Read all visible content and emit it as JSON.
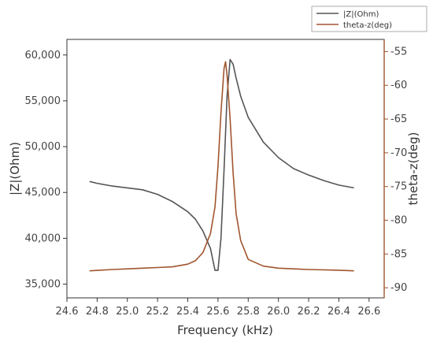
{
  "chart_data": {
    "type": "line",
    "xlabel": "Frequency (kHz)",
    "y1label": "|Z|(Ohm)",
    "y2label": "theta-z(deg)",
    "xlim": [
      24.6,
      26.7
    ],
    "y1lim": [
      33500,
      61700
    ],
    "y2lim": [
      -91.5,
      -53.2
    ],
    "x_ticks": [
      "24.6",
      "24.8",
      "25.0",
      "25.2",
      "25.4",
      "25.6",
      "25.8",
      "26.0",
      "26.2",
      "26.4",
      "26.6"
    ],
    "y1_ticks": [
      "35,000",
      "40,000",
      "45,000",
      "50,000",
      "55,000",
      "60,000"
    ],
    "y2_ticks": [
      "-55",
      "-60",
      "-65",
      "-70",
      "-75",
      "-80",
      "-85",
      "-90"
    ],
    "legend": {
      "placement": "top-right",
      "entries": [
        "|Z|(Ohm)",
        "theta-z(deg)"
      ]
    },
    "series": [
      {
        "name": "|Z|(Ohm)",
        "axis": "left",
        "color": "#555555",
        "x": [
          24.75,
          24.8,
          24.9,
          25.0,
          25.1,
          25.2,
          25.3,
          25.4,
          25.45,
          25.5,
          25.55,
          25.58,
          25.6,
          25.62,
          25.64,
          25.66,
          25.68,
          25.7,
          25.72,
          25.75,
          25.8,
          25.9,
          26.0,
          26.1,
          26.2,
          26.3,
          26.4,
          26.5
        ],
        "y": [
          46200,
          46000,
          45700,
          45500,
          45300,
          44800,
          44000,
          42900,
          42100,
          40800,
          38900,
          36500,
          36500,
          40000,
          47500,
          55500,
          59500,
          59000,
          57500,
          55500,
          53200,
          50500,
          48800,
          47600,
          46900,
          46300,
          45800,
          45500
        ]
      },
      {
        "name": "theta-z(deg)",
        "axis": "right",
        "color": "#a0552e",
        "x": [
          24.75,
          24.9,
          25.0,
          25.1,
          25.2,
          25.3,
          25.4,
          25.45,
          25.5,
          25.55,
          25.58,
          25.6,
          25.62,
          25.64,
          25.65,
          25.66,
          25.68,
          25.7,
          25.72,
          25.75,
          25.8,
          25.9,
          26.0,
          26.2,
          26.4,
          26.5
        ],
        "y": [
          -87.5,
          -87.3,
          -87.2,
          -87.1,
          -87.0,
          -86.9,
          -86.5,
          -86.0,
          -84.8,
          -82.0,
          -78.0,
          -72.0,
          -64.0,
          -57.5,
          -56.5,
          -58.5,
          -65.0,
          -73.0,
          -79.0,
          -83.0,
          -85.8,
          -86.8,
          -87.1,
          -87.3,
          -87.4,
          -87.5
        ]
      }
    ]
  }
}
